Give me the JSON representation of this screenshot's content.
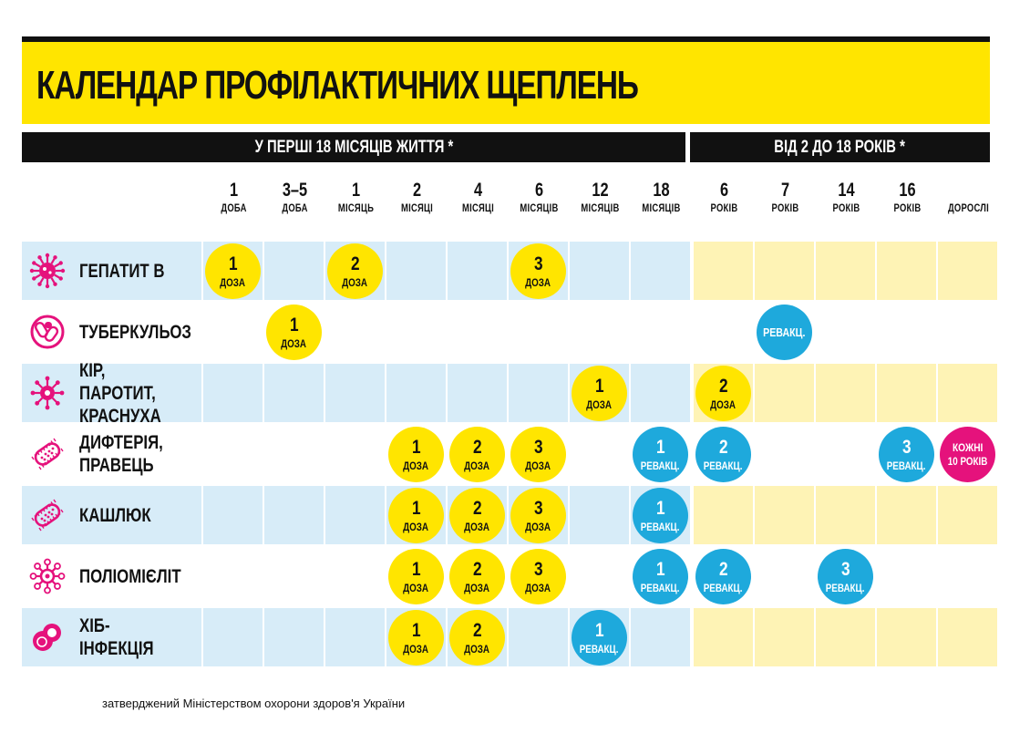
{
  "title": "КАЛЕНДАР ПРОФІЛАКТИЧНИХ ЩЕПЛЕНЬ",
  "sections": [
    {
      "label": "У ПЕРШІ 18 МІСЯЦІВ ЖИТТЯ *"
    },
    {
      "label": "ВІД 2 ДО 18 РОКІВ *"
    }
  ],
  "columns": [
    {
      "num": "1",
      "unit": "ДОБА"
    },
    {
      "num": "3–5",
      "unit": "ДОБА"
    },
    {
      "num": "1",
      "unit": "МІСЯЦЬ"
    },
    {
      "num": "2",
      "unit": "МІСЯЦІ"
    },
    {
      "num": "4",
      "unit": "МІСЯЦІ"
    },
    {
      "num": "6",
      "unit": "МІСЯЦІВ"
    },
    {
      "num": "12",
      "unit": "МІСЯЦІВ"
    },
    {
      "num": "18",
      "unit": "МІСЯЦІВ"
    },
    {
      "num": "6",
      "unit": "РОКІВ"
    },
    {
      "num": "7",
      "unit": "РОКІВ"
    },
    {
      "num": "14",
      "unit": "РОКІВ"
    },
    {
      "num": "16",
      "unit": "РОКІВ"
    },
    {
      "num": "",
      "unit": "ДОРОСЛІ"
    }
  ],
  "colors": {
    "title_yellow": "#ffe500",
    "dose_yellow": "#ffe500",
    "revac_blue": "#1ea9dc",
    "adult_pink": "#e5127c",
    "row_blue": "#d7ecf8",
    "row_yellow": "#fef3b5",
    "icon_magenta": "#e5127c"
  },
  "rows": [
    {
      "name": "ГЕПАТИТ В",
      "icon": "virus-spiky-icon",
      "shaded": true,
      "doses": [
        {
          "col": 0,
          "num": "1",
          "label": "ДОЗА",
          "kind": "dose"
        },
        {
          "col": 2,
          "num": "2",
          "label": "ДОЗА",
          "kind": "dose"
        },
        {
          "col": 5,
          "num": "3",
          "label": "ДОЗА",
          "kind": "dose"
        }
      ]
    },
    {
      "name": "ТУБЕРКУЛЬОЗ",
      "icon": "bacteria-capsule-icon",
      "shaded": false,
      "doses": [
        {
          "col": 1,
          "num": "1",
          "label": "ДОЗА",
          "kind": "dose"
        },
        {
          "col": 9,
          "num": "",
          "label": "РЕВАКЦ.",
          "kind": "revac"
        }
      ]
    },
    {
      "name": "КІР, ПАРОТИТ,\nКРАСНУХА",
      "icon": "virus-round-icon",
      "shaded": true,
      "doses": [
        {
          "col": 6,
          "num": "1",
          "label": "ДОЗА",
          "kind": "dose"
        },
        {
          "col": 8,
          "num": "2",
          "label": "ДОЗА",
          "kind": "dose"
        }
      ]
    },
    {
      "name": "ДИФТЕРІЯ,\nПРАВЕЦЬ",
      "icon": "bacillus-icon",
      "shaded": false,
      "doses": [
        {
          "col": 3,
          "num": "1",
          "label": "ДОЗА",
          "kind": "dose"
        },
        {
          "col": 4,
          "num": "2",
          "label": "ДОЗА",
          "kind": "dose"
        },
        {
          "col": 5,
          "num": "3",
          "label": "ДОЗА",
          "kind": "dose"
        },
        {
          "col": 7,
          "num": "1",
          "label": "РЕВАКЦ.",
          "kind": "revac"
        },
        {
          "col": 8,
          "num": "2",
          "label": "РЕВАКЦ.",
          "kind": "revac"
        },
        {
          "col": 11,
          "num": "3",
          "label": "РЕВАКЦ.",
          "kind": "revac"
        },
        {
          "col": 12,
          "num": "КОЖНІ",
          "label": "10 РОКІВ",
          "kind": "adult"
        }
      ]
    },
    {
      "name": "КАШЛЮК",
      "icon": "bacillus-icon",
      "shaded": true,
      "doses": [
        {
          "col": 3,
          "num": "1",
          "label": "ДОЗА",
          "kind": "dose"
        },
        {
          "col": 4,
          "num": "2",
          "label": "ДОЗА",
          "kind": "dose"
        },
        {
          "col": 5,
          "num": "3",
          "label": "ДОЗА",
          "kind": "dose"
        },
        {
          "col": 7,
          "num": "1",
          "label": "РЕВАКЦ.",
          "kind": "revac"
        }
      ]
    },
    {
      "name": "ПОЛІОМІЄЛІТ",
      "icon": "virus-receptor-icon",
      "shaded": false,
      "doses": [
        {
          "col": 3,
          "num": "1",
          "label": "ДОЗА",
          "kind": "dose"
        },
        {
          "col": 4,
          "num": "2",
          "label": "ДОЗА",
          "kind": "dose"
        },
        {
          "col": 5,
          "num": "3",
          "label": "ДОЗА",
          "kind": "dose"
        },
        {
          "col": 7,
          "num": "1",
          "label": "РЕВАКЦ.",
          "kind": "revac"
        },
        {
          "col": 8,
          "num": "2",
          "label": "РЕВАКЦ.",
          "kind": "revac"
        },
        {
          "col": 10,
          "num": "3",
          "label": "РЕВАКЦ.",
          "kind": "revac"
        }
      ]
    },
    {
      "name": "ХІБ-ІНФЕКЦІЯ",
      "icon": "diplococcus-icon",
      "shaded": true,
      "doses": [
        {
          "col": 3,
          "num": "1",
          "label": "ДОЗА",
          "kind": "dose"
        },
        {
          "col": 4,
          "num": "2",
          "label": "ДОЗА",
          "kind": "dose"
        },
        {
          "col": 6,
          "num": "1",
          "label": "РЕВАКЦ.",
          "kind": "revac"
        }
      ]
    }
  ],
  "footer": "затверджений Міністерством охорони здоров'я України"
}
